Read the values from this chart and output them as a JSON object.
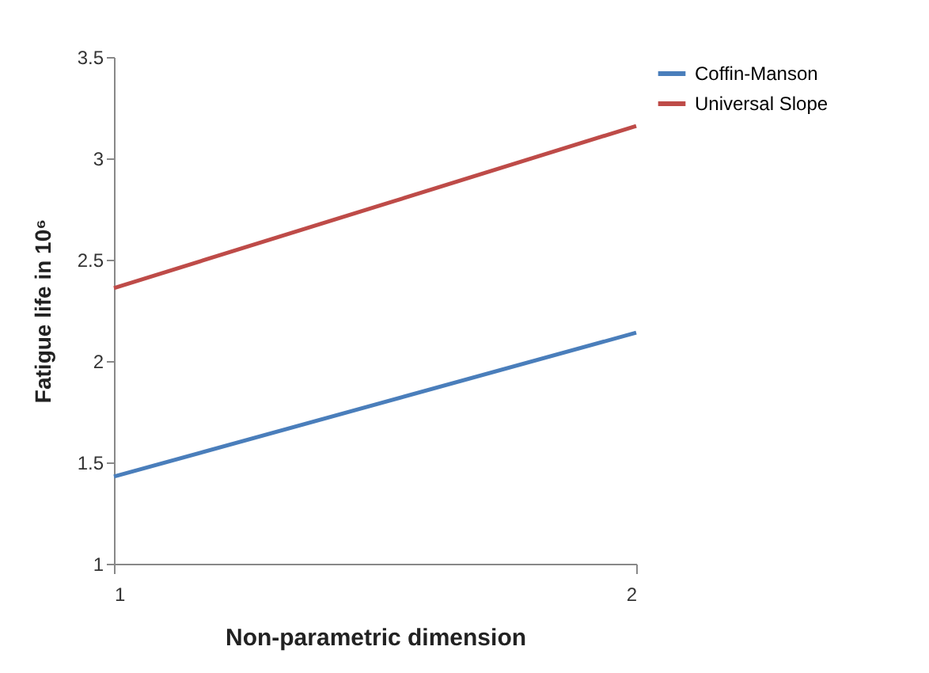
{
  "chart_data": {
    "type": "line",
    "xlabel": "Non-parametric dimension",
    "ylabel": "Fatigue life in 10⁶",
    "x": [
      1,
      2
    ],
    "xlim": [
      1,
      2
    ],
    "xticks": [
      1,
      2
    ],
    "ylim": [
      1,
      3.5
    ],
    "yticks": [
      1,
      1.5,
      2,
      2.5,
      3,
      3.5
    ],
    "series": [
      {
        "name": "Coffin-Manson",
        "color": "#4a7ebb",
        "values": [
          1.43,
          2.14
        ]
      },
      {
        "name": "Universal Slope",
        "color": "#be4b48",
        "values": [
          2.36,
          3.16
        ]
      }
    ],
    "grid": false,
    "legend": "right",
    "marker": "none",
    "line_style": "solid"
  }
}
